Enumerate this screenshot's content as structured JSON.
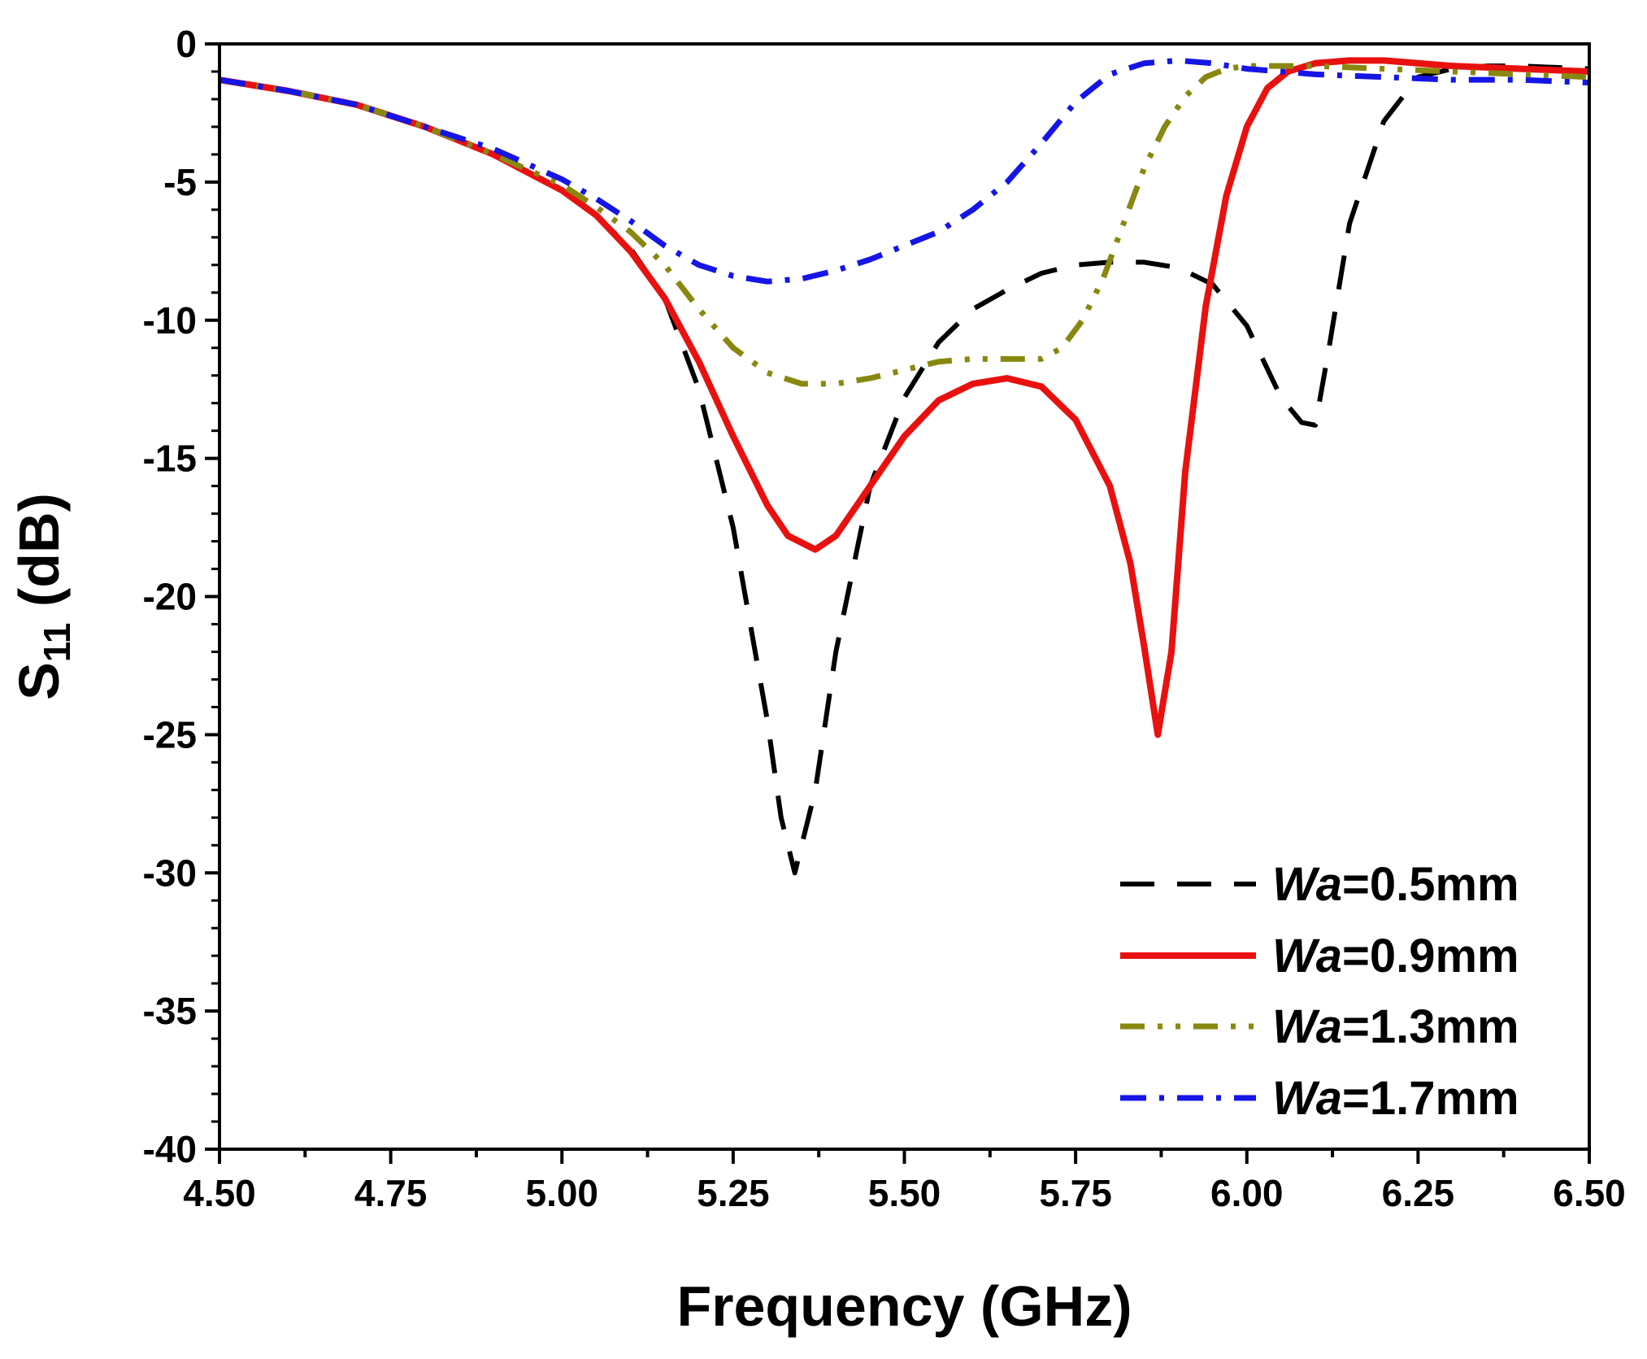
{
  "chart_data": {
    "type": "line",
    "title": "",
    "xlabel": "Frequency (GHz)",
    "ylabel": {
      "main": "S",
      "sub": "11",
      "unit": " (dB)"
    },
    "xlim": [
      4.5,
      6.5
    ],
    "ylim": [
      -40,
      0
    ],
    "x_ticks": [
      "4.50",
      "4.75",
      "5.00",
      "5.25",
      "5.50",
      "5.75",
      "6.00",
      "6.25",
      "6.50"
    ],
    "y_ticks": [
      "0",
      "-5",
      "-10",
      "-15",
      "-20",
      "-25",
      "-30",
      "-35",
      "-40"
    ],
    "legend_position": "bottom-right",
    "series": [
      {
        "name": "Wa=0.5mm",
        "label_italic": "Wa",
        "label_rest": "=0.5mm",
        "color": "#000000",
        "style": "dash",
        "x": [
          4.5,
          4.6,
          4.7,
          4.8,
          4.9,
          5.0,
          5.05,
          5.1,
          5.15,
          5.2,
          5.25,
          5.3,
          5.32,
          5.34,
          5.37,
          5.4,
          5.45,
          5.5,
          5.55,
          5.6,
          5.65,
          5.7,
          5.75,
          5.8,
          5.85,
          5.9,
          5.95,
          6.0,
          6.05,
          6.08,
          6.1,
          6.12,
          6.15,
          6.2,
          6.25,
          6.3,
          6.35,
          6.4,
          6.5
        ],
        "y": [
          -1.3,
          -1.7,
          -2.2,
          -3.0,
          -4.0,
          -5.3,
          -6.2,
          -7.4,
          -9.2,
          -12.5,
          -17.5,
          -24.5,
          -28.0,
          -30.0,
          -27.0,
          -22.0,
          -16.0,
          -12.8,
          -10.8,
          -9.6,
          -8.9,
          -8.3,
          -8.0,
          -7.9,
          -7.9,
          -8.1,
          -8.7,
          -10.2,
          -12.8,
          -13.7,
          -13.8,
          -11.0,
          -6.5,
          -2.8,
          -1.2,
          -0.9,
          -0.8,
          -0.8,
          -0.9
        ]
      },
      {
        "name": "Wa=0.9mm",
        "label_italic": "Wa",
        "label_rest": "=0.9mm",
        "color": "#e8110f",
        "style": "solid",
        "x": [
          4.5,
          4.6,
          4.7,
          4.8,
          4.9,
          5.0,
          5.05,
          5.1,
          5.15,
          5.2,
          5.25,
          5.3,
          5.33,
          5.37,
          5.4,
          5.45,
          5.5,
          5.55,
          5.6,
          5.65,
          5.7,
          5.75,
          5.8,
          5.83,
          5.85,
          5.87,
          5.89,
          5.91,
          5.94,
          5.97,
          6.0,
          6.03,
          6.06,
          6.1,
          6.15,
          6.2,
          6.3,
          6.4,
          6.5
        ],
        "y": [
          -1.3,
          -1.7,
          -2.2,
          -3.0,
          -4.0,
          -5.3,
          -6.2,
          -7.5,
          -9.2,
          -11.5,
          -14.2,
          -16.7,
          -17.8,
          -18.3,
          -17.8,
          -16.0,
          -14.2,
          -12.9,
          -12.3,
          -12.1,
          -12.4,
          -13.6,
          -16.0,
          -18.8,
          -21.8,
          -25.0,
          -22.0,
          -15.5,
          -9.5,
          -5.5,
          -3.0,
          -1.6,
          -1.0,
          -0.7,
          -0.6,
          -0.6,
          -0.8,
          -0.9,
          -1.0
        ]
      },
      {
        "name": "Wa=1.3mm",
        "label_italic": "Wa",
        "label_rest": "=1.3mm",
        "color": "#888810",
        "style": "dash-dot-dot",
        "x": [
          4.5,
          4.6,
          4.7,
          4.8,
          4.9,
          5.0,
          5.05,
          5.1,
          5.15,
          5.2,
          5.25,
          5.3,
          5.35,
          5.4,
          5.45,
          5.5,
          5.55,
          5.6,
          5.65,
          5.7,
          5.73,
          5.76,
          5.79,
          5.82,
          5.85,
          5.88,
          5.91,
          5.94,
          5.97,
          6.0,
          6.05,
          6.1,
          6.2,
          6.3,
          6.4,
          6.5
        ],
        "y": [
          -1.3,
          -1.7,
          -2.2,
          -3.0,
          -4.0,
          -5.1,
          -5.9,
          -6.8,
          -8.0,
          -9.6,
          -11.0,
          -11.9,
          -12.3,
          -12.3,
          -12.1,
          -11.8,
          -11.5,
          -11.4,
          -11.4,
          -11.4,
          -11.0,
          -10.0,
          -8.5,
          -6.5,
          -4.5,
          -3.0,
          -1.9,
          -1.2,
          -0.9,
          -0.8,
          -0.8,
          -0.8,
          -0.9,
          -1.0,
          -1.1,
          -1.2
        ]
      },
      {
        "name": "Wa=1.7mm",
        "label_italic": "Wa",
        "label_rest": "=1.7mm",
        "color": "#1515e6",
        "style": "dash-dot",
        "x": [
          4.5,
          4.6,
          4.7,
          4.8,
          4.9,
          5.0,
          5.05,
          5.1,
          5.15,
          5.2,
          5.25,
          5.3,
          5.35,
          5.4,
          5.45,
          5.5,
          5.55,
          5.6,
          5.65,
          5.7,
          5.75,
          5.8,
          5.85,
          5.9,
          5.95,
          6.0,
          6.05,
          6.1,
          6.2,
          6.3,
          6.4,
          6.5
        ],
        "y": [
          -1.3,
          -1.7,
          -2.2,
          -3.0,
          -3.8,
          -4.9,
          -5.6,
          -6.4,
          -7.3,
          -8.0,
          -8.4,
          -8.6,
          -8.5,
          -8.2,
          -7.8,
          -7.3,
          -6.8,
          -6.0,
          -5.0,
          -3.6,
          -2.1,
          -1.1,
          -0.7,
          -0.6,
          -0.7,
          -0.9,
          -1.0,
          -1.1,
          -1.2,
          -1.3,
          -1.3,
          -1.4
        ]
      }
    ]
  }
}
